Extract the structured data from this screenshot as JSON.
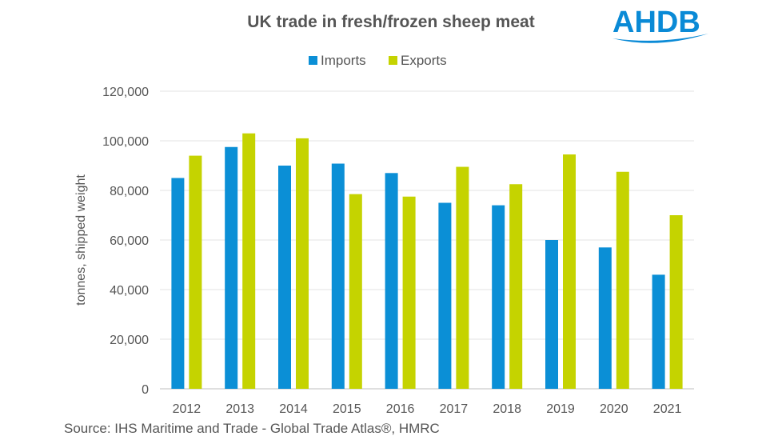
{
  "logo": {
    "text": "AHDB",
    "color": "#0a8ad6"
  },
  "source": "Source: IHS Maritime and Trade - Global Trade Atlas®, HMRC",
  "chart_data": {
    "type": "bar",
    "title": "UK trade in fresh/frozen sheep meat",
    "xlabel": "",
    "ylabel": "tonnes, shipped weight",
    "ylim": [
      0,
      120000
    ],
    "yticks": [
      0,
      20000,
      40000,
      60000,
      80000,
      100000,
      120000
    ],
    "ytick_labels": [
      "0",
      "20,000",
      "40,000",
      "60,000",
      "80,000",
      "100,000",
      "120,000"
    ],
    "grid": true,
    "legend_position": "top-center",
    "categories": [
      "2012",
      "2013",
      "2014",
      "2015",
      "2016",
      "2017",
      "2018",
      "2019",
      "2020",
      "2021"
    ],
    "series": [
      {
        "name": "Imports",
        "color": "#0b8fd6",
        "values": [
          85000,
          97500,
          90000,
          90800,
          87000,
          75000,
          74000,
          60000,
          57000,
          46000
        ]
      },
      {
        "name": "Exports",
        "color": "#c5d300",
        "values": [
          94000,
          103000,
          101000,
          78500,
          77500,
          89500,
          82500,
          94500,
          87500,
          70000
        ]
      }
    ]
  }
}
